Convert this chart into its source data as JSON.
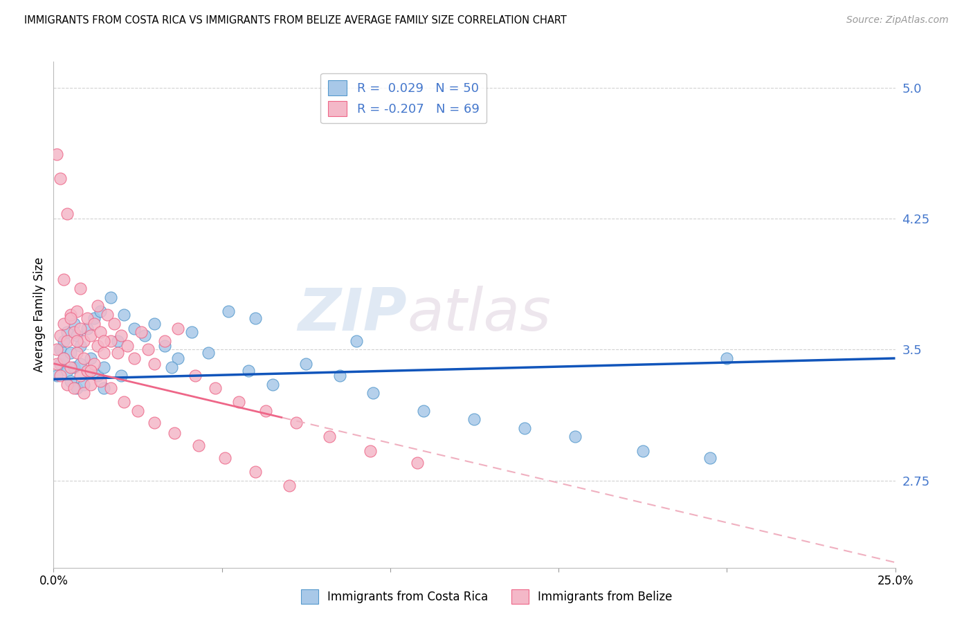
{
  "title": "IMMIGRANTS FROM COSTA RICA VS IMMIGRANTS FROM BELIZE AVERAGE FAMILY SIZE CORRELATION CHART",
  "source": "Source: ZipAtlas.com",
  "ylabel": "Average Family Size",
  "xmin": 0.0,
  "xmax": 0.25,
  "ymin": 2.25,
  "ymax": 5.15,
  "yticks": [
    2.75,
    3.5,
    4.25,
    5.0
  ],
  "xticks": [
    0.0,
    0.05,
    0.1,
    0.15,
    0.2,
    0.25
  ],
  "xtick_labels": [
    "0.0%",
    "",
    "",
    "",
    "",
    "25.0%"
  ],
  "watermark_zip": "ZIP",
  "watermark_atlas": "atlas",
  "series1_color": "#a8c8e8",
  "series1_edge": "#5599cc",
  "series2_color": "#f4b8c8",
  "series2_edge": "#ee6688",
  "trend1_color": "#1155bb",
  "trend2_color": "#ee6688",
  "trend2_dash_color": "#f0b0c0",
  "costa_rica_x": [
    0.001,
    0.002,
    0.002,
    0.003,
    0.003,
    0.004,
    0.004,
    0.005,
    0.005,
    0.006,
    0.006,
    0.007,
    0.007,
    0.008,
    0.008,
    0.009,
    0.01,
    0.011,
    0.012,
    0.013,
    0.014,
    0.015,
    0.017,
    0.019,
    0.021,
    0.024,
    0.027,
    0.03,
    0.033,
    0.037,
    0.041,
    0.046,
    0.052,
    0.058,
    0.065,
    0.075,
    0.085,
    0.095,
    0.11,
    0.125,
    0.14,
    0.155,
    0.175,
    0.195,
    0.09,
    0.06,
    0.035,
    0.02,
    0.015,
    0.2
  ],
  "costa_rica_y": [
    3.35,
    3.5,
    3.42,
    3.55,
    3.45,
    3.6,
    3.38,
    3.48,
    3.32,
    3.65,
    3.4,
    3.58,
    3.28,
    3.52,
    3.42,
    3.3,
    3.62,
    3.45,
    3.68,
    3.35,
    3.72,
    3.4,
    3.8,
    3.55,
    3.7,
    3.62,
    3.58,
    3.65,
    3.52,
    3.45,
    3.6,
    3.48,
    3.72,
    3.38,
    3.3,
    3.42,
    3.35,
    3.25,
    3.15,
    3.1,
    3.05,
    3.0,
    2.92,
    2.88,
    3.55,
    3.68,
    3.4,
    3.35,
    3.28,
    3.45
  ],
  "belize_x": [
    0.001,
    0.001,
    0.002,
    0.002,
    0.003,
    0.003,
    0.004,
    0.004,
    0.005,
    0.005,
    0.006,
    0.006,
    0.007,
    0.007,
    0.008,
    0.008,
    0.009,
    0.009,
    0.01,
    0.01,
    0.011,
    0.011,
    0.012,
    0.012,
    0.013,
    0.013,
    0.014,
    0.015,
    0.016,
    0.017,
    0.018,
    0.019,
    0.02,
    0.022,
    0.024,
    0.026,
    0.028,
    0.03,
    0.033,
    0.037,
    0.042,
    0.048,
    0.055,
    0.063,
    0.072,
    0.082,
    0.094,
    0.108,
    0.002,
    0.003,
    0.005,
    0.007,
    0.009,
    0.011,
    0.014,
    0.017,
    0.021,
    0.025,
    0.03,
    0.036,
    0.043,
    0.051,
    0.06,
    0.07,
    0.001,
    0.004,
    0.008,
    0.015
  ],
  "belize_y": [
    3.5,
    3.42,
    3.58,
    3.35,
    3.65,
    3.45,
    3.55,
    3.3,
    3.7,
    3.4,
    3.6,
    3.28,
    3.72,
    3.48,
    3.62,
    3.35,
    3.55,
    3.25,
    3.68,
    3.38,
    3.58,
    3.3,
    3.65,
    3.42,
    3.75,
    3.52,
    3.6,
    3.48,
    3.7,
    3.55,
    3.65,
    3.48,
    3.58,
    3.52,
    3.45,
    3.6,
    3.5,
    3.42,
    3.55,
    3.62,
    3.35,
    3.28,
    3.2,
    3.15,
    3.08,
    3.0,
    2.92,
    2.85,
    4.48,
    3.9,
    3.68,
    3.55,
    3.45,
    3.38,
    3.32,
    3.28,
    3.2,
    3.15,
    3.08,
    3.02,
    2.95,
    2.88,
    2.8,
    2.72,
    4.62,
    4.28,
    3.85,
    3.55
  ]
}
